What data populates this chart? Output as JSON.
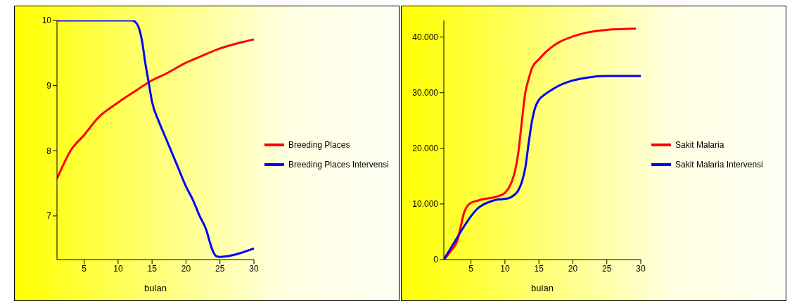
{
  "chart_data": [
    {
      "type": "line",
      "xlabel": "bulan",
      "xlim": [
        1,
        30
      ],
      "xticks": [
        5,
        10,
        15,
        20,
        25,
        30
      ],
      "ylim": [
        6.33,
        10
      ],
      "yticks": [
        7,
        8,
        9,
        10
      ],
      "legend": "right",
      "grid": false,
      "series": [
        {
          "name": "Breeding Places",
          "color": "#ff0000",
          "x": [
            1,
            2,
            3,
            5,
            7,
            10,
            12,
            15,
            17,
            20,
            22,
            25,
            28,
            30
          ],
          "values": [
            7.57,
            7.8,
            8.0,
            8.24,
            8.5,
            8.74,
            8.88,
            9.08,
            9.18,
            9.35,
            9.44,
            9.57,
            9.66,
            9.71
          ]
        },
        {
          "name": "Breeding Places Intervensi",
          "color": "#0000ff",
          "x": [
            1,
            5,
            10,
            12,
            12.5,
            13,
            13.5,
            14,
            14.5,
            15,
            16,
            17,
            18,
            19,
            20,
            21,
            22,
            23,
            23.5,
            24,
            24.5,
            25,
            27,
            30
          ],
          "values": [
            10,
            10,
            10,
            10,
            9.98,
            9.9,
            9.7,
            9.35,
            9.05,
            8.75,
            8.45,
            8.2,
            7.95,
            7.7,
            7.45,
            7.25,
            7.0,
            6.78,
            6.6,
            6.45,
            6.38,
            6.37,
            6.4,
            6.5
          ]
        }
      ]
    },
    {
      "type": "line",
      "xlabel": "bulan",
      "xlim": [
        1,
        30
      ],
      "xticks": [
        5,
        10,
        15,
        20,
        25,
        30
      ],
      "ylim": [
        0,
        43000
      ],
      "yticks": [
        0,
        {
          "value": 10000,
          "label": "10.000"
        },
        {
          "value": 20000,
          "label": "20.000"
        },
        {
          "value": 30000,
          "label": "30.000"
        },
        {
          "value": 40000,
          "label": "40.000"
        }
      ],
      "legend": "right",
      "grid": false,
      "series": [
        {
          "name": "Sakit Malaria",
          "color": "#ff0000",
          "x": [
            1,
            2,
            3,
            3.5,
            4,
            4.5,
            5,
            6,
            7,
            8,
            9,
            10,
            11,
            11.5,
            12,
            12.5,
            13,
            13.5,
            14,
            15,
            16,
            17,
            18,
            20,
            22,
            25,
            29.3
          ],
          "values": [
            0,
            1500,
            3500,
            6000,
            8500,
            9700,
            10200,
            10600,
            10900,
            11100,
            11400,
            12000,
            14000,
            16000,
            19500,
            25000,
            30000,
            32500,
            34500,
            36000,
            37300,
            38300,
            39100,
            40100,
            40800,
            41300,
            41500
          ]
        },
        {
          "name": "Sakit Malaria Intervensi",
          "color": "#0000ff",
          "x": [
            1,
            2,
            3,
            4,
            5,
            6,
            7,
            8,
            9,
            10,
            11,
            12,
            12.5,
            13,
            13.5,
            14,
            14.5,
            15,
            16,
            17,
            18,
            20,
            22,
            25,
            30
          ],
          "values": [
            0,
            2000,
            4000,
            6000,
            7800,
            9200,
            10000,
            10500,
            10800,
            10900,
            11300,
            12500,
            14000,
            16500,
            21000,
            25000,
            27500,
            28700,
            29800,
            30600,
            31300,
            32200,
            32700,
            33000,
            33000
          ]
        }
      ]
    }
  ]
}
